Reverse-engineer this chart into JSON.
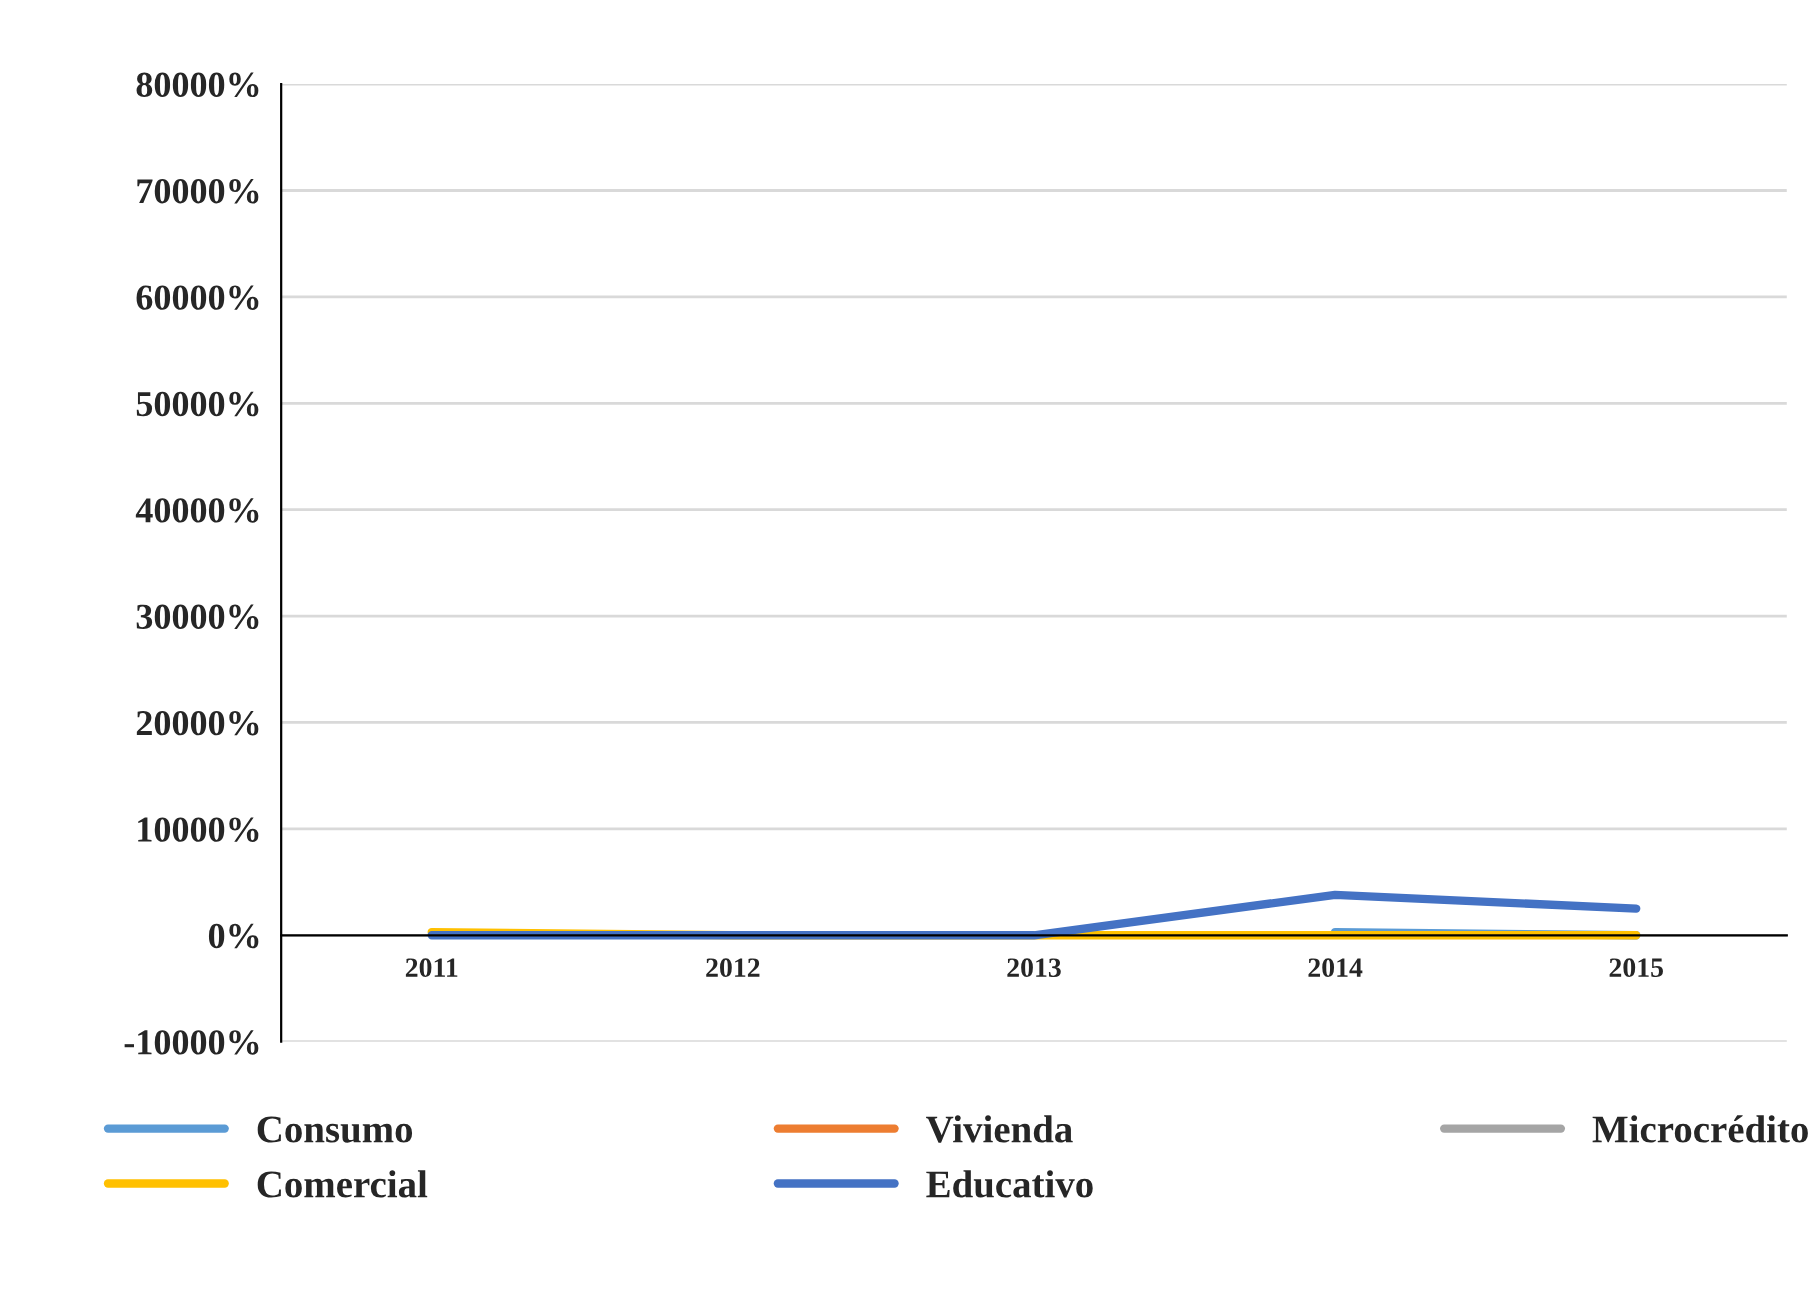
{
  "chart_data": {
    "type": "line",
    "categories": [
      "2011",
      "2012",
      "2013",
      "2014",
      "2015"
    ],
    "series": [
      {
        "name": "Consumo",
        "color": "#5b9bd5",
        "values": [
          null,
          null,
          null,
          300,
          0
        ]
      },
      {
        "name": "Vivienda",
        "color": "#ed7d31",
        "values": [
          null,
          null,
          null,
          null,
          null
        ]
      },
      {
        "name": "Microcrédito",
        "color": "#a5a5a5",
        "values": [
          null,
          null,
          null,
          null,
          null
        ]
      },
      {
        "name": "Comercial",
        "color": "#ffc000",
        "values": [
          300,
          0,
          0,
          0,
          0
        ]
      },
      {
        "name": "Educativo",
        "color": "#4472c4",
        "values": [
          0,
          0,
          0,
          3800,
          2500
        ]
      }
    ],
    "ylim": [
      -10000,
      80000
    ],
    "yticks": [
      {
        "value": -10000,
        "label": "-10000%"
      },
      {
        "value": 0,
        "label": "0%"
      },
      {
        "value": 10000,
        "label": "10000%"
      },
      {
        "value": 20000,
        "label": "20000%"
      },
      {
        "value": 30000,
        "label": "30000%"
      },
      {
        "value": 40000,
        "label": "40000%"
      },
      {
        "value": 50000,
        "label": "50000%"
      },
      {
        "value": 60000,
        "label": "60000%"
      },
      {
        "value": 70000,
        "label": "70000%"
      },
      {
        "value": 80000,
        "label": "80000%"
      }
    ],
    "grid": "y",
    "legend": "bottom",
    "marker": "none",
    "line_style": "solid"
  }
}
